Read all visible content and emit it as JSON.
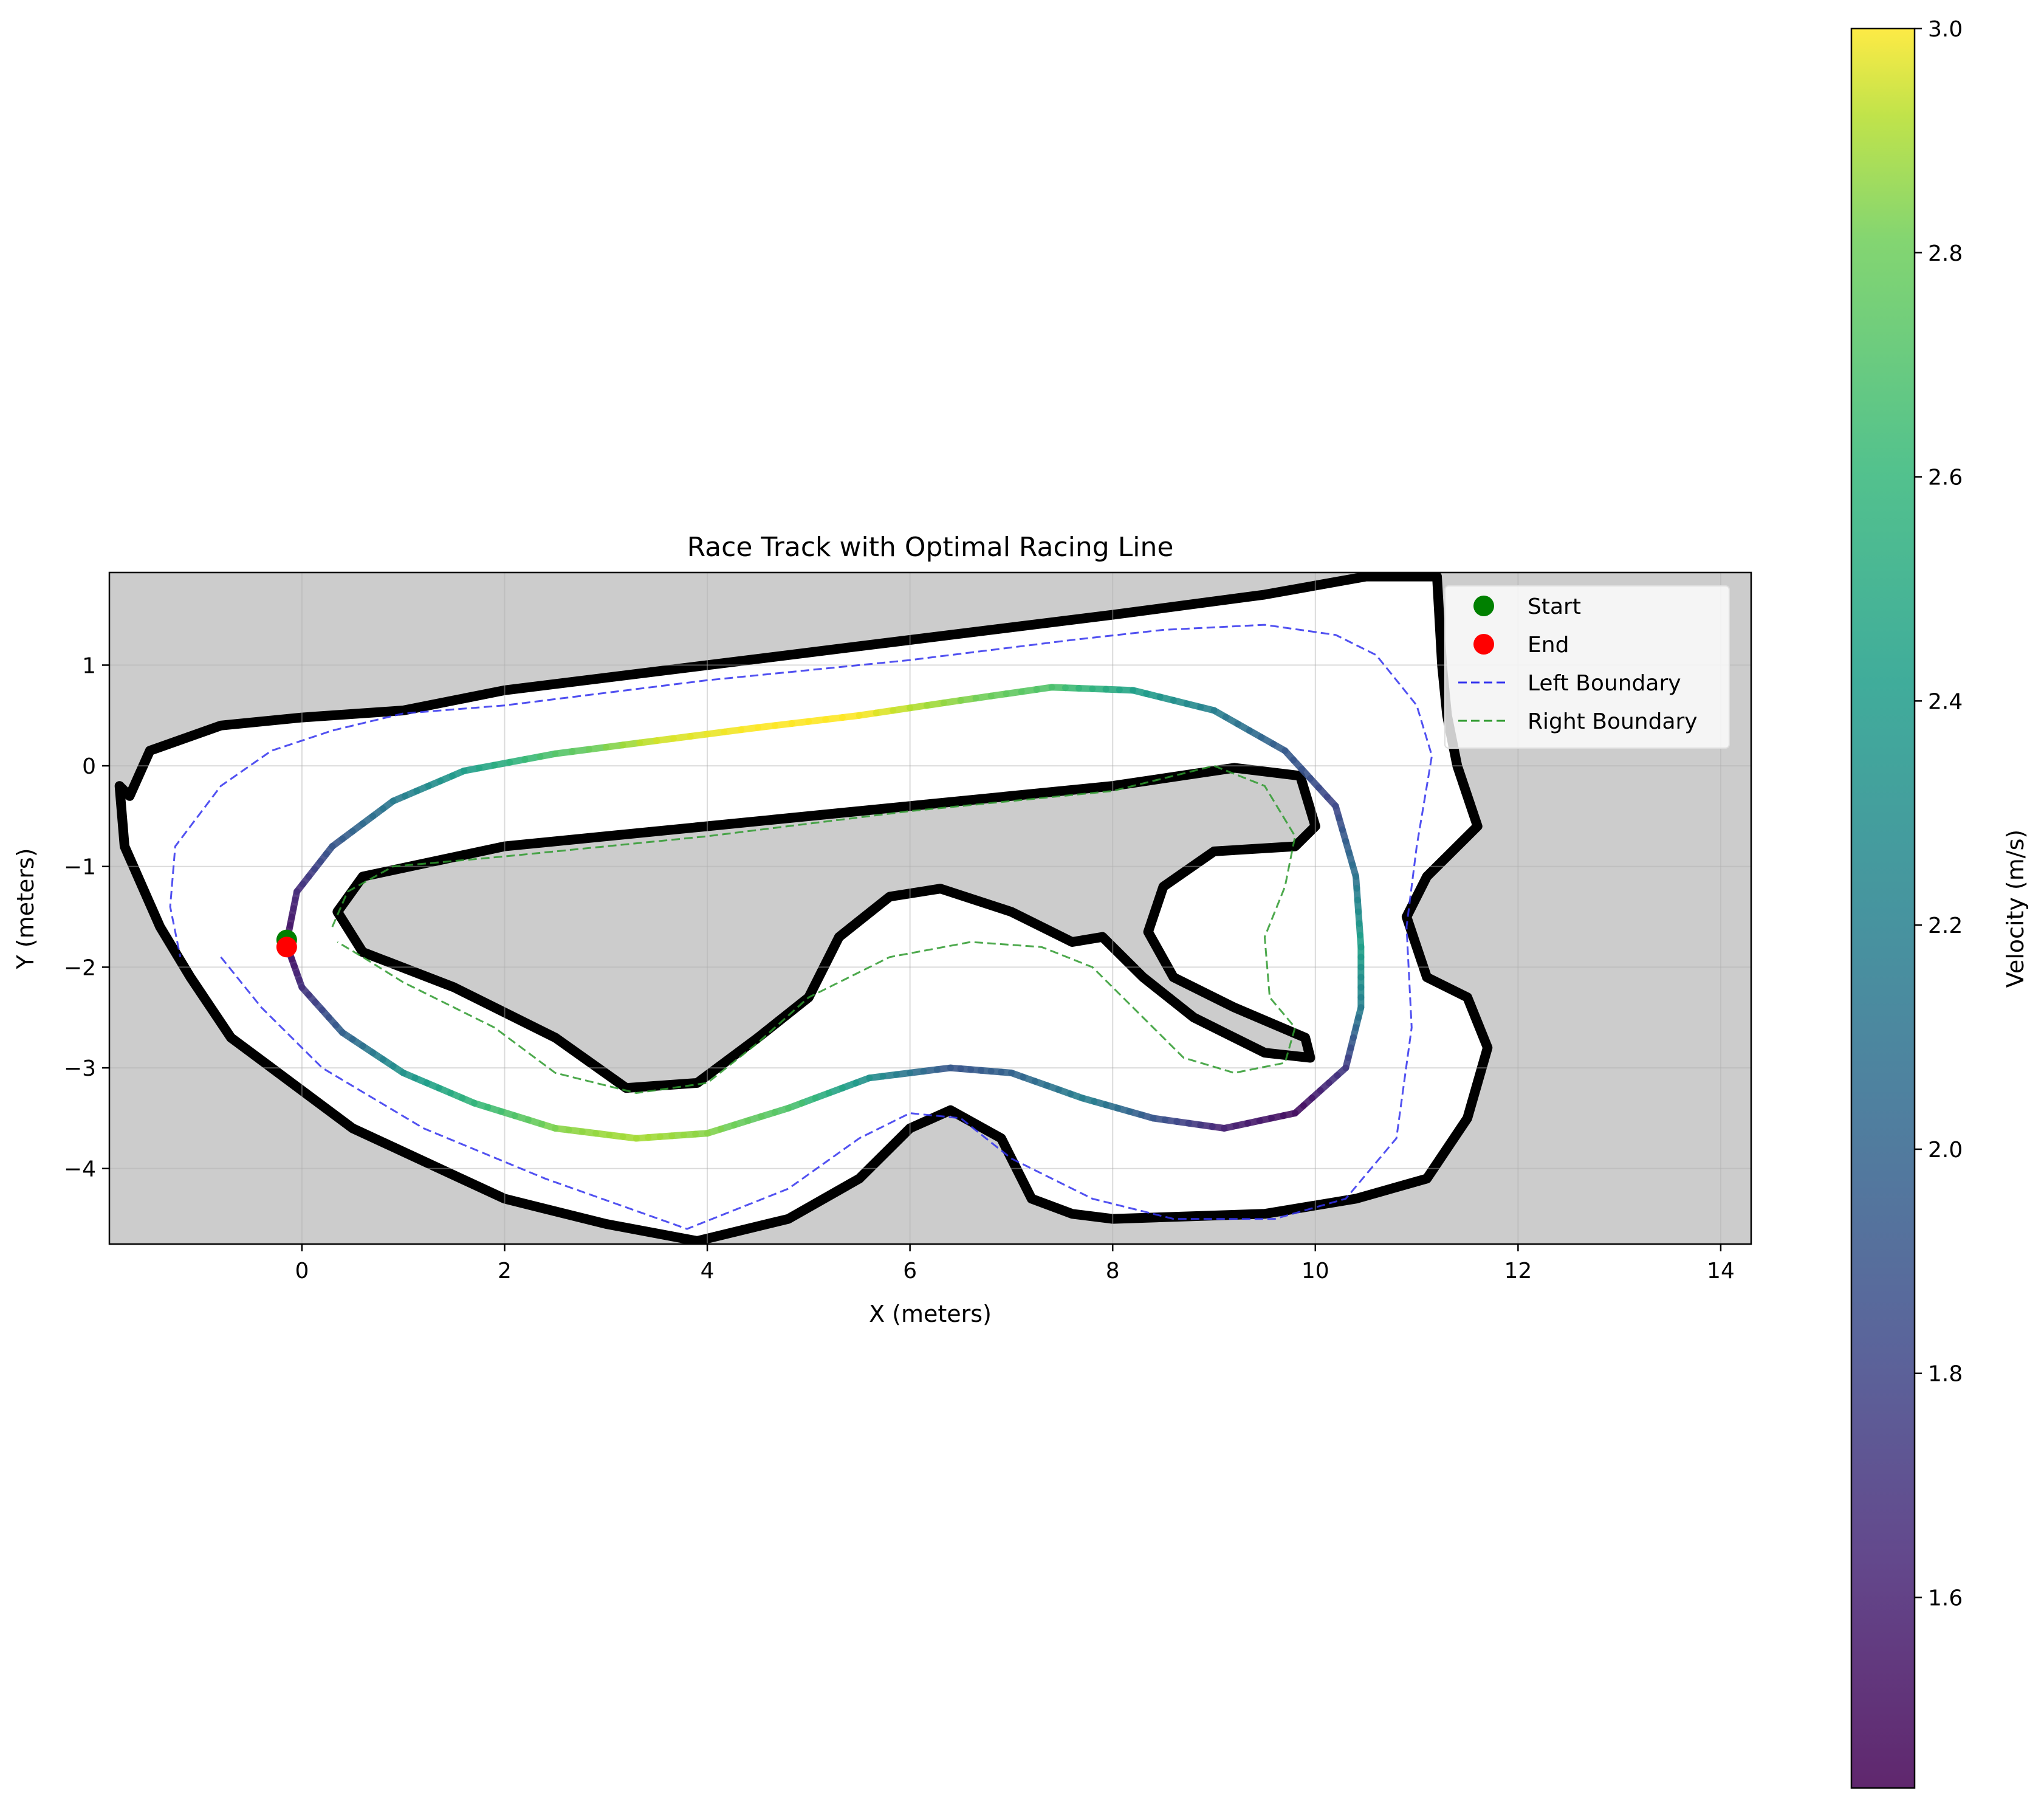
{
  "chart_data": {
    "type": "line",
    "title": "Race Track with Optimal Racing Line",
    "xlabel": "X (meters)",
    "ylabel": "Y (meters)",
    "xlim": [
      -1.9,
      14.3
    ],
    "ylim": [
      -4.75,
      1.92
    ],
    "xticks": [
      0,
      2,
      4,
      6,
      8,
      10,
      12,
      14
    ],
    "yticks": [
      -4,
      -3,
      -2,
      -1,
      0,
      1
    ],
    "grid": true,
    "legend_position": "top-right",
    "colorbar": {
      "label": "Velocity (m/s)",
      "range": [
        1.43,
        3.0
      ],
      "ticks": [
        1.6,
        1.8,
        2.0,
        2.2,
        2.4,
        2.6,
        2.8,
        3.0
      ],
      "colormap": "viridis"
    },
    "colors": {
      "background": "#cccccc",
      "track": "#ffffff",
      "wall": "#000000",
      "start": "#008000",
      "end": "#ff0000",
      "left_boundary": "#3333ee",
      "right_boundary": "#2e9a2e"
    },
    "legend": [
      {
        "label": "Start",
        "style": "marker",
        "color": "#008000"
      },
      {
        "label": "End",
        "style": "marker",
        "color": "#ff0000"
      },
      {
        "label": "Left Boundary",
        "style": "dashed",
        "color": "#3333ee"
      },
      {
        "label": "Right Boundary",
        "style": "dashed",
        "color": "#2e9a2e"
      }
    ],
    "start_point": {
      "x": -0.15,
      "y": -1.73
    },
    "end_point": {
      "x": -0.15,
      "y": -1.8
    },
    "outer_wall": [
      [
        -1.8,
        -0.2
      ],
      [
        -1.7,
        -0.3
      ],
      [
        -1.5,
        0.15
      ],
      [
        -0.8,
        0.4
      ],
      [
        0,
        0.48
      ],
      [
        1.0,
        0.55
      ],
      [
        2.0,
        0.75
      ],
      [
        4.0,
        1.0
      ],
      [
        6.0,
        1.25
      ],
      [
        8.0,
        1.5
      ],
      [
        9.5,
        1.7
      ],
      [
        10.5,
        1.88
      ],
      [
        11.2,
        1.88
      ],
      [
        11.25,
        1.0
      ],
      [
        11.3,
        0.5
      ],
      [
        11.4,
        0.0
      ],
      [
        11.6,
        -0.6
      ],
      [
        11.1,
        -1.1
      ],
      [
        10.9,
        -1.5
      ],
      [
        11.1,
        -2.1
      ],
      [
        11.5,
        -2.3
      ],
      [
        11.7,
        -2.8
      ],
      [
        11.5,
        -3.5
      ],
      [
        11.1,
        -4.1
      ],
      [
        10.4,
        -4.3
      ],
      [
        9.5,
        -4.45
      ],
      [
        8.0,
        -4.5
      ],
      [
        7.6,
        -4.45
      ],
      [
        7.2,
        -4.3
      ],
      [
        6.9,
        -3.7
      ],
      [
        6.4,
        -3.42
      ],
      [
        6.0,
        -3.6
      ],
      [
        5.5,
        -4.1
      ],
      [
        4.8,
        -4.5
      ],
      [
        3.9,
        -4.72
      ],
      [
        3.0,
        -4.55
      ],
      [
        2.0,
        -4.3
      ],
      [
        0.5,
        -3.6
      ],
      [
        -0.3,
        -3.0
      ],
      [
        -0.7,
        -2.7
      ],
      [
        -1.1,
        -2.1
      ],
      [
        -1.4,
        -1.6
      ],
      [
        -1.75,
        -0.8
      ],
      [
        -1.8,
        -0.2
      ]
    ],
    "inner_wall": [
      [
        0.35,
        -1.45
      ],
      [
        0.6,
        -1.1
      ],
      [
        2.0,
        -0.8
      ],
      [
        4.0,
        -0.6
      ],
      [
        6.0,
        -0.4
      ],
      [
        8.0,
        -0.2
      ],
      [
        9.2,
        -0.02
      ],
      [
        9.85,
        -0.1
      ],
      [
        10.0,
        -0.6
      ],
      [
        9.8,
        -0.8
      ],
      [
        9.0,
        -0.85
      ],
      [
        8.5,
        -1.2
      ],
      [
        8.35,
        -1.65
      ],
      [
        8.6,
        -2.1
      ],
      [
        9.2,
        -2.4
      ],
      [
        9.9,
        -2.7
      ],
      [
        9.95,
        -2.9
      ],
      [
        9.5,
        -2.85
      ],
      [
        8.8,
        -2.5
      ],
      [
        8.3,
        -2.1
      ],
      [
        7.9,
        -1.7
      ],
      [
        7.6,
        -1.75
      ],
      [
        7.0,
        -1.45
      ],
      [
        6.3,
        -1.22
      ],
      [
        5.8,
        -1.3
      ],
      [
        5.3,
        -1.7
      ],
      [
        5.0,
        -2.3
      ],
      [
        4.5,
        -2.7
      ],
      [
        3.9,
        -3.15
      ],
      [
        3.2,
        -3.2
      ],
      [
        2.5,
        -2.7
      ],
      [
        1.5,
        -2.2
      ],
      [
        0.6,
        -1.85
      ],
      [
        0.35,
        -1.45
      ]
    ],
    "left_boundary": [
      [
        -0.8,
        -1.9
      ],
      [
        -0.4,
        -2.4
      ],
      [
        0.2,
        -3.0
      ],
      [
        1.2,
        -3.6
      ],
      [
        2.4,
        -4.1
      ],
      [
        3.8,
        -4.6
      ],
      [
        4.8,
        -4.2
      ],
      [
        5.5,
        -3.7
      ],
      [
        6.0,
        -3.45
      ],
      [
        6.5,
        -3.5
      ],
      [
        7.0,
        -3.9
      ],
      [
        7.8,
        -4.3
      ],
      [
        8.6,
        -4.5
      ],
      [
        9.6,
        -4.5
      ],
      [
        10.3,
        -4.3
      ],
      [
        10.8,
        -3.7
      ],
      [
        10.95,
        -2.6
      ],
      [
        10.9,
        -1.6
      ],
      [
        11.0,
        -0.8
      ],
      [
        11.15,
        0.1
      ],
      [
        11.0,
        0.6
      ],
      [
        10.6,
        1.1
      ],
      [
        10.2,
        1.3
      ],
      [
        9.5,
        1.4
      ],
      [
        8.5,
        1.35
      ],
      [
        7.6,
        1.25
      ],
      [
        6.0,
        1.05
      ],
      [
        4.0,
        0.85
      ],
      [
        2.0,
        0.6
      ],
      [
        1.0,
        0.52
      ],
      [
        0.3,
        0.35
      ],
      [
        -0.3,
        0.15
      ],
      [
        -0.8,
        -0.2
      ],
      [
        -1.25,
        -0.8
      ],
      [
        -1.3,
        -1.4
      ],
      [
        -1.2,
        -1.9
      ]
    ],
    "right_boundary": [
      [
        0.3,
        -1.6
      ],
      [
        0.45,
        -1.25
      ],
      [
        0.9,
        -1.0
      ],
      [
        2.0,
        -0.9
      ],
      [
        4.0,
        -0.7
      ],
      [
        6.0,
        -0.45
      ],
      [
        8.0,
        -0.25
      ],
      [
        9.0,
        0.0
      ],
      [
        9.5,
        -0.2
      ],
      [
        9.8,
        -0.7
      ],
      [
        9.7,
        -1.2
      ],
      [
        9.5,
        -1.7
      ],
      [
        9.55,
        -2.3
      ],
      [
        9.8,
        -2.6
      ],
      [
        9.7,
        -2.95
      ],
      [
        9.2,
        -3.05
      ],
      [
        8.7,
        -2.9
      ],
      [
        8.2,
        -2.4
      ],
      [
        7.8,
        -2.0
      ],
      [
        7.3,
        -1.8
      ],
      [
        6.6,
        -1.75
      ],
      [
        5.8,
        -1.9
      ],
      [
        5.0,
        -2.3
      ],
      [
        4.5,
        -2.75
      ],
      [
        4.0,
        -3.15
      ],
      [
        3.3,
        -3.25
      ],
      [
        2.5,
        -3.05
      ],
      [
        1.9,
        -2.6
      ],
      [
        1.0,
        -2.15
      ],
      [
        0.6,
        -1.9
      ],
      [
        0.35,
        -1.75
      ]
    ],
    "racing_line": [
      {
        "x": -0.15,
        "y": -1.75,
        "v": 1.5
      },
      {
        "x": -0.05,
        "y": -1.25,
        "v": 1.65
      },
      {
        "x": 0.3,
        "y": -0.8,
        "v": 1.9
      },
      {
        "x": 0.9,
        "y": -0.35,
        "v": 2.15
      },
      {
        "x": 1.6,
        "y": -0.05,
        "v": 2.4
      },
      {
        "x": 2.5,
        "y": 0.12,
        "v": 2.7
      },
      {
        "x": 3.5,
        "y": 0.25,
        "v": 2.95
      },
      {
        "x": 4.5,
        "y": 0.38,
        "v": 3.0
      },
      {
        "x": 5.5,
        "y": 0.5,
        "v": 3.0
      },
      {
        "x": 6.5,
        "y": 0.65,
        "v": 2.85
      },
      {
        "x": 7.4,
        "y": 0.78,
        "v": 2.7
      },
      {
        "x": 8.2,
        "y": 0.75,
        "v": 2.45
      },
      {
        "x": 9.0,
        "y": 0.55,
        "v": 2.2
      },
      {
        "x": 9.7,
        "y": 0.15,
        "v": 1.95
      },
      {
        "x": 10.2,
        "y": -0.4,
        "v": 1.8
      },
      {
        "x": 10.4,
        "y": -1.1,
        "v": 2.1
      },
      {
        "x": 10.45,
        "y": -1.8,
        "v": 2.45
      },
      {
        "x": 10.45,
        "y": -2.4,
        "v": 2.2
      },
      {
        "x": 10.3,
        "y": -3.0,
        "v": 1.75
      },
      {
        "x": 9.8,
        "y": -3.45,
        "v": 1.5
      },
      {
        "x": 9.1,
        "y": -3.6,
        "v": 1.6
      },
      {
        "x": 8.4,
        "y": -3.5,
        "v": 1.9
      },
      {
        "x": 7.7,
        "y": -3.3,
        "v": 2.2
      },
      {
        "x": 7.0,
        "y": -3.05,
        "v": 2.0
      },
      {
        "x": 6.4,
        "y": -3.0,
        "v": 1.9
      },
      {
        "x": 5.6,
        "y": -3.1,
        "v": 2.3
      },
      {
        "x": 4.8,
        "y": -3.4,
        "v": 2.7
      },
      {
        "x": 4.0,
        "y": -3.65,
        "v": 2.85
      },
      {
        "x": 3.3,
        "y": -3.7,
        "v": 2.9
      },
      {
        "x": 2.5,
        "y": -3.6,
        "v": 2.85
      },
      {
        "x": 1.7,
        "y": -3.35,
        "v": 2.6
      },
      {
        "x": 1.0,
        "y": -3.05,
        "v": 2.35
      },
      {
        "x": 0.4,
        "y": -2.65,
        "v": 2.0
      },
      {
        "x": 0.0,
        "y": -2.2,
        "v": 1.7
      },
      {
        "x": -0.15,
        "y": -1.78,
        "v": 1.5
      }
    ]
  }
}
